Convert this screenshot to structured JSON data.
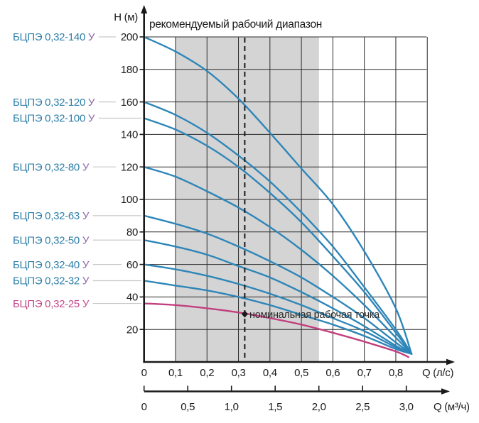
{
  "title": "рекомендуемый рабочий диапазон",
  "colors": {
    "curve_blue": "#2e86b8",
    "curve_pink": "#c23f7d",
    "label_teal": "#2f7fa9",
    "label_suffix_purple": "#8a63a8",
    "label_pink": "#c2478b",
    "grid": "#2b2b2b",
    "axis": "#1a1a1a",
    "band": "#d4d4d4",
    "leader": "#c8c8c8",
    "text": "#1a1a1a"
  },
  "y_axis": {
    "label": "H (м)",
    "ticks": [
      "20",
      "40",
      "60",
      "80",
      "100",
      "120",
      "140",
      "160",
      "180",
      "200"
    ],
    "tick_values": [
      20,
      40,
      60,
      80,
      100,
      120,
      140,
      160,
      180,
      200
    ],
    "range": [
      0,
      200
    ]
  },
  "x_axis_primary": {
    "label": "Q (л/с)",
    "ticks": [
      "0",
      "0,1",
      "0,2",
      "0,3",
      "0,4",
      "0,5",
      "0,6",
      "0,7",
      "0,8"
    ],
    "tick_values": [
      0,
      0.1,
      0.2,
      0.3,
      0.4,
      0.5,
      0.6,
      0.7,
      0.8
    ],
    "range": [
      0,
      0.9
    ]
  },
  "x_axis_secondary": {
    "label": "Q (м³/ч)",
    "ticks": [
      "0",
      "0,5",
      "1,0",
      "1,5",
      "2,0",
      "2,5",
      "3,0"
    ],
    "tick_values": [
      0,
      0.5,
      1.0,
      1.5,
      2.0,
      2.5,
      3.0
    ],
    "range": [
      0,
      3.0
    ]
  },
  "recommended_band": {
    "q_from": 0.1,
    "q_to": 0.556
  },
  "dashed_line_q": 0.32,
  "nominal_point": {
    "q": 0.32,
    "h": 29.5,
    "label": "номинальная рабочая точка"
  },
  "chart_data": {
    "type": "line",
    "title": "рекомендуемый рабочий диапазон",
    "xlabel": "Q (л/с)",
    "xlabel_secondary": "Q (м³/ч)",
    "ylabel": "H (м)",
    "xlim": [
      0,
      0.9
    ],
    "ylim": [
      0,
      200
    ],
    "grid": true,
    "series": [
      {
        "name": "БЦПЭ 0,32-140 У",
        "model": "БЦПЭ 0,32-140",
        "suffix": "У",
        "color_key": "blue",
        "points": [
          [
            0,
            200
          ],
          [
            0.1,
            191
          ],
          [
            0.2,
            179
          ],
          [
            0.3,
            162
          ],
          [
            0.4,
            141
          ],
          [
            0.5,
            119
          ],
          [
            0.6,
            97
          ],
          [
            0.7,
            68
          ],
          [
            0.8,
            33
          ],
          [
            0.85,
            5
          ]
        ]
      },
      {
        "name": "БЦПЭ 0,32-120 У",
        "model": "БЦПЭ 0,32-120",
        "suffix": "У",
        "color_key": "blue",
        "points": [
          [
            0,
            160
          ],
          [
            0.1,
            152
          ],
          [
            0.2,
            141
          ],
          [
            0.3,
            127
          ],
          [
            0.4,
            111
          ],
          [
            0.5,
            92
          ],
          [
            0.6,
            71
          ],
          [
            0.7,
            46
          ],
          [
            0.8,
            20
          ],
          [
            0.85,
            5
          ]
        ]
      },
      {
        "name": "БЦПЭ 0,32-100 У",
        "model": "БЦПЭ 0,32-100",
        "suffix": "У",
        "color_key": "blue",
        "points": [
          [
            0,
            150
          ],
          [
            0.1,
            143
          ],
          [
            0.2,
            133
          ],
          [
            0.3,
            120
          ],
          [
            0.4,
            104
          ],
          [
            0.5,
            86
          ],
          [
            0.6,
            65
          ],
          [
            0.7,
            43
          ],
          [
            0.8,
            18
          ],
          [
            0.85,
            5
          ]
        ]
      },
      {
        "name": "БЦПЭ 0,32-80 У",
        "model": "БЦПЭ 0,32-80",
        "suffix": "У",
        "color_key": "blue",
        "points": [
          [
            0,
            120
          ],
          [
            0.1,
            114
          ],
          [
            0.2,
            105
          ],
          [
            0.3,
            95
          ],
          [
            0.4,
            83
          ],
          [
            0.5,
            69
          ],
          [
            0.6,
            53
          ],
          [
            0.7,
            35
          ],
          [
            0.8,
            15
          ],
          [
            0.85,
            5
          ]
        ]
      },
      {
        "name": "БЦПЭ 0,32-63 У",
        "model": "БЦПЭ 0,32-63",
        "suffix": "У",
        "color_key": "blue",
        "points": [
          [
            0,
            90
          ],
          [
            0.1,
            85
          ],
          [
            0.2,
            79
          ],
          [
            0.3,
            71
          ],
          [
            0.4,
            62
          ],
          [
            0.5,
            52
          ],
          [
            0.6,
            40
          ],
          [
            0.7,
            27
          ],
          [
            0.8,
            12
          ],
          [
            0.85,
            5
          ]
        ]
      },
      {
        "name": "БЦПЭ 0,32-50 У",
        "model": "БЦПЭ 0,32-50",
        "suffix": "У",
        "color_key": "blue",
        "points": [
          [
            0,
            75
          ],
          [
            0.1,
            71
          ],
          [
            0.2,
            66
          ],
          [
            0.3,
            59
          ],
          [
            0.4,
            52
          ],
          [
            0.5,
            43
          ],
          [
            0.6,
            33
          ],
          [
            0.7,
            22
          ],
          [
            0.8,
            10
          ],
          [
            0.85,
            5
          ]
        ]
      },
      {
        "name": "БЦПЭ 0,32-40 У",
        "model": "БЦПЭ 0,32-40",
        "suffix": "У",
        "color_key": "blue",
        "points": [
          [
            0,
            60
          ],
          [
            0.1,
            57
          ],
          [
            0.2,
            53
          ],
          [
            0.3,
            48
          ],
          [
            0.4,
            42
          ],
          [
            0.5,
            35
          ],
          [
            0.6,
            27
          ],
          [
            0.7,
            19
          ],
          [
            0.8,
            9
          ],
          [
            0.85,
            5
          ]
        ]
      },
      {
        "name": "БЦПЭ 0,32-32 У",
        "model": "БЦПЭ 0,32-32",
        "suffix": "У",
        "color_key": "blue",
        "points": [
          [
            0,
            50
          ],
          [
            0.1,
            47
          ],
          [
            0.2,
            44
          ],
          [
            0.3,
            40
          ],
          [
            0.4,
            35
          ],
          [
            0.5,
            29
          ],
          [
            0.6,
            23
          ],
          [
            0.7,
            16
          ],
          [
            0.8,
            8
          ],
          [
            0.85,
            5
          ]
        ]
      },
      {
        "name": "БЦПЭ 0,32-25 У",
        "model": "БЦПЭ 0,32-25",
        "suffix": "У",
        "color_key": "pink",
        "points": [
          [
            0,
            36
          ],
          [
            0.1,
            35
          ],
          [
            0.2,
            33
          ],
          [
            0.3,
            30.5
          ],
          [
            0.4,
            27
          ],
          [
            0.5,
            23
          ],
          [
            0.6,
            18
          ],
          [
            0.7,
            12.5
          ],
          [
            0.8,
            6.5
          ],
          [
            0.84,
            3
          ]
        ]
      }
    ]
  }
}
